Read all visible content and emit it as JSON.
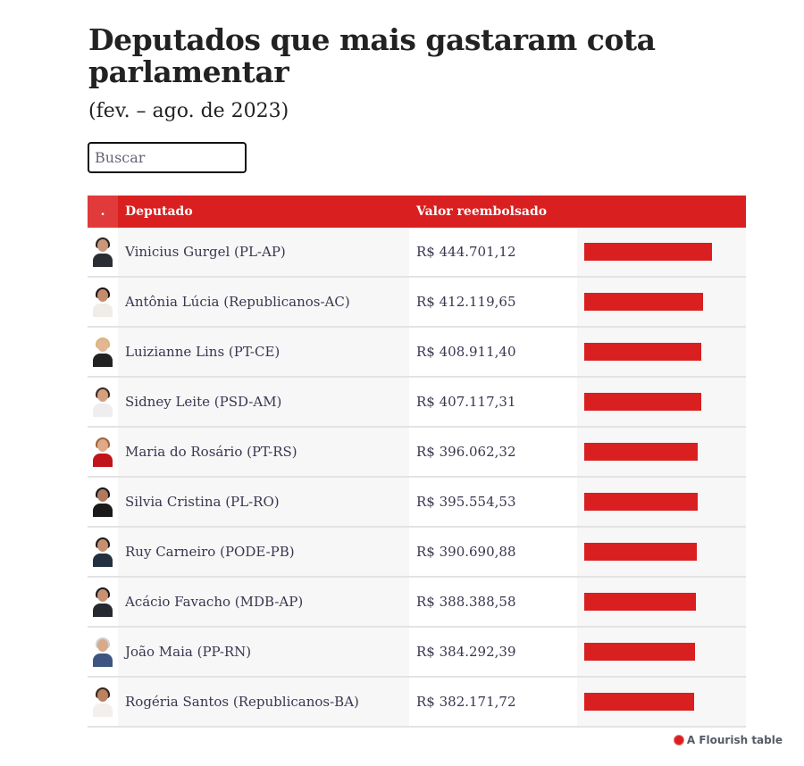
{
  "header": {
    "title": "Deputados que mais gastaram cota parlamentar",
    "subtitle": "(fev. – ago. de 2023)"
  },
  "search": {
    "placeholder": "Buscar",
    "value": ""
  },
  "table": {
    "columns": {
      "image": ".",
      "name": "Deputado",
      "value": "Valor reembolsado",
      "bar": ""
    },
    "bar_color": "#d91f1f",
    "max_value": 444701.12,
    "rows": [
      {
        "name": "Vinicius Gurgel (PL-AP)",
        "value_label": "R$ 444.701,12",
        "value": 444701.12,
        "avatar": {
          "hair": "#2b2220",
          "skin": "#c9977a",
          "body": "#2a2d33"
        }
      },
      {
        "name": "Antônia Lúcia (Republicanos-AC)",
        "value_label": "R$ 412.119,65",
        "value": 412119.65,
        "avatar": {
          "hair": "#1c1412",
          "skin": "#c48c6c",
          "body": "#f0ece8"
        }
      },
      {
        "name": "Luizianne Lins (PT-CE)",
        "value_label": "R$ 408.911,40",
        "value": 408911.4,
        "avatar": {
          "hair": "#d9b57a",
          "skin": "#e2b697",
          "body": "#222222"
        }
      },
      {
        "name": "Sidney Leite (PSD-AM)",
        "value_label": "R$ 407.117,31",
        "value": 407117.31,
        "avatar": {
          "hair": "#3a2a22",
          "skin": "#d4a080",
          "body": "#eeeeee"
        }
      },
      {
        "name": "Maria do Rosário (PT-RS)",
        "value_label": "R$ 396.062,32",
        "value": 396062.32,
        "avatar": {
          "hair": "#a0623a",
          "skin": "#e0a98a",
          "body": "#c0151a"
        }
      },
      {
        "name": "Silvia Cristina (PL-RO)",
        "value_label": "R$ 395.554,53",
        "value": 395554.53,
        "avatar": {
          "hair": "#161616",
          "skin": "#b07a5c",
          "body": "#1a1a1a"
        }
      },
      {
        "name": "Ruy Carneiro (PODE-PB)",
        "value_label": "R$ 390.690,88",
        "value": 390690.88,
        "avatar": {
          "hair": "#1e1a1a",
          "skin": "#c69070",
          "body": "#233040"
        }
      },
      {
        "name": "Acácio Favacho (MDB-AP)",
        "value_label": "R$ 388.388,58",
        "value": 388388.58,
        "avatar": {
          "hair": "#1a1a1a",
          "skin": "#c89272",
          "body": "#262a30"
        }
      },
      {
        "name": "João Maia (PP-RN)",
        "value_label": "R$ 384.292,39",
        "value": 384292.39,
        "avatar": {
          "hair": "#cfcfcf",
          "skin": "#d9a98c",
          "body": "#3d5580"
        }
      },
      {
        "name": "Rogéria Santos (Republicanos-BA)",
        "value_label": "R$ 382.171,72",
        "value": 382171.72,
        "avatar": {
          "hair": "#3a2418",
          "skin": "#b98262",
          "body": "#f3efec"
        }
      }
    ]
  },
  "footer": {
    "credit": "A Flourish table"
  }
}
